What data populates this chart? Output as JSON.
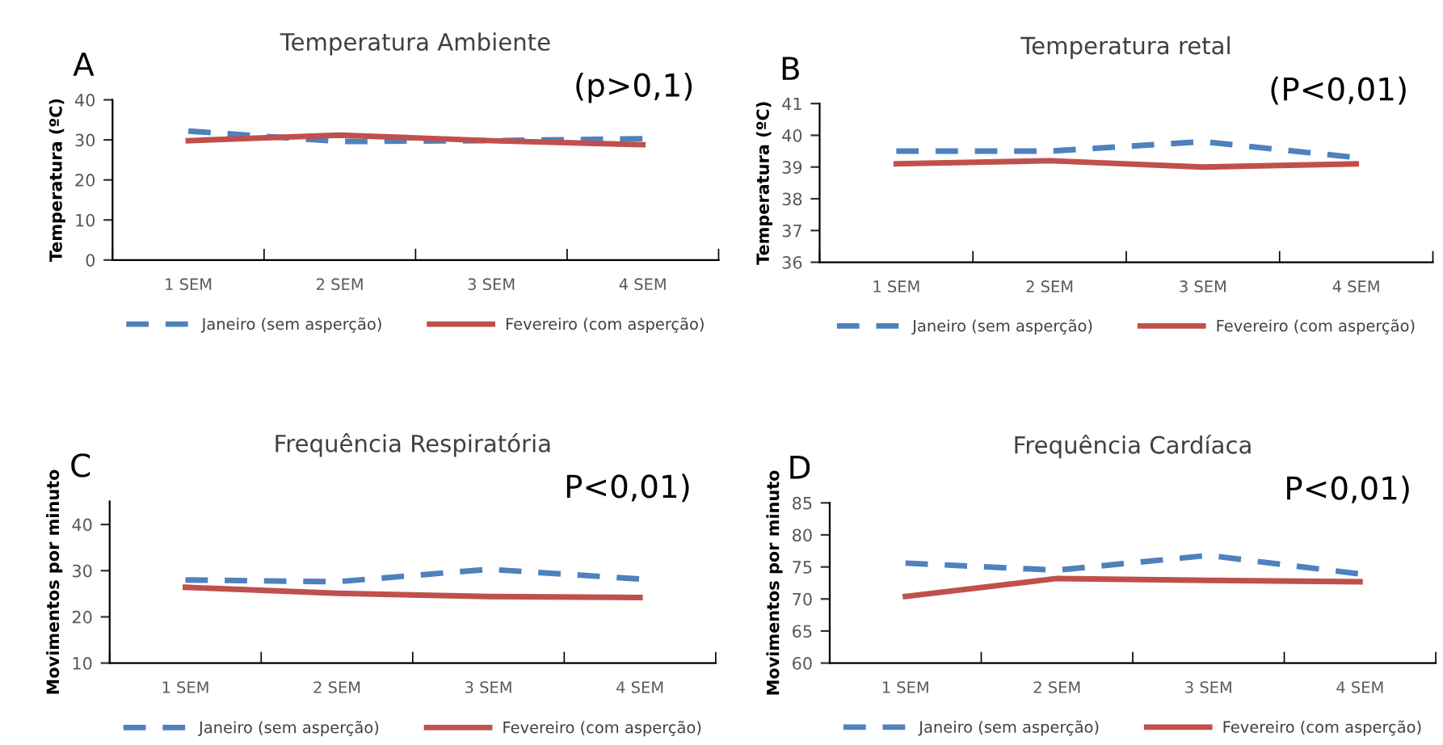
{
  "chart_data": [
    {
      "type": "line",
      "title": "Temperatura Ambiente",
      "ylabel": "Temperatura (ºC)",
      "annotations": [
        "A",
        "(p>0,1)"
      ],
      "categories": [
        "1 SEM",
        "2 SEM",
        "3 SEM",
        "4 SEM"
      ],
      "ylim": [
        0,
        40
      ],
      "yticks": [
        0,
        10,
        20,
        30,
        40
      ],
      "legend": "bottom",
      "grid": false,
      "series": [
        {
          "name": "Janeiro (sem asperção)",
          "color": "#4f81bd",
          "line_style": "dashed",
          "values": [
            32.2,
            29.6,
            29.8,
            30.3
          ]
        },
        {
          "name": "Fevereiro (com asperção)",
          "color": "#c0504d",
          "line_style": "solid",
          "values": [
            29.8,
            31.2,
            29.8,
            28.8
          ]
        }
      ]
    },
    {
      "type": "line",
      "title": "Temperatura retal",
      "ylabel": "Temperatura (ºC)",
      "annotations": [
        "B",
        "(P<0,01)"
      ],
      "categories": [
        "1 SEM",
        "2 SEM",
        "3 SEM",
        "4 SEM"
      ],
      "ylim": [
        36,
        41
      ],
      "yticks": [
        36,
        37,
        38,
        39,
        40,
        41
      ],
      "legend": "bottom",
      "grid": false,
      "series": [
        {
          "name": "Janeiro (sem asperção)",
          "color": "#4f81bd",
          "line_style": "dashed",
          "values": [
            39.5,
            39.5,
            39.8,
            39.3
          ]
        },
        {
          "name": "Fevereiro (com asperção)",
          "color": "#c0504d",
          "line_style": "solid",
          "values": [
            39.1,
            39.2,
            39.0,
            39.1
          ]
        }
      ]
    },
    {
      "type": "line",
      "title": "Frequência Respiratória",
      "ylabel": "Movimentos por minuto",
      "annotations": [
        "C",
        "P<0,01)"
      ],
      "categories": [
        "1 SEM",
        "2 SEM",
        "3 SEM",
        "4 SEM"
      ],
      "ylim": [
        10,
        45
      ],
      "yticks": [
        10,
        20,
        30,
        40
      ],
      "legend": "bottom",
      "grid": false,
      "series": [
        {
          "name": "Janeiro (sem asperção)",
          "color": "#4f81bd",
          "line_style": "dashed",
          "values": [
            28.0,
            27.6,
            30.3,
            28.2
          ]
        },
        {
          "name": "Fevereiro (com asperção)",
          "color": "#c0504d",
          "line_style": "solid",
          "values": [
            26.4,
            25.1,
            24.4,
            24.2
          ]
        }
      ]
    },
    {
      "type": "line",
      "title": "Frequência Cardíaca",
      "ylabel": "Movimentos por minuto",
      "annotations": [
        "D",
        "P<0,01)"
      ],
      "categories": [
        "1 SEM",
        "2 SEM",
        "3 SEM",
        "4 SEM"
      ],
      "ylim": [
        60,
        85
      ],
      "yticks": [
        60,
        65,
        70,
        75,
        80,
        85
      ],
      "legend": "bottom",
      "grid": false,
      "series": [
        {
          "name": "Janeiro (sem asperção)",
          "color": "#4f81bd",
          "line_style": "dashed",
          "values": [
            75.6,
            74.5,
            76.8,
            73.9
          ]
        },
        {
          "name": "Fevereiro (com asperção)",
          "color": "#c0504d",
          "line_style": "solid",
          "values": [
            70.4,
            73.2,
            72.9,
            72.7
          ]
        }
      ]
    }
  ]
}
